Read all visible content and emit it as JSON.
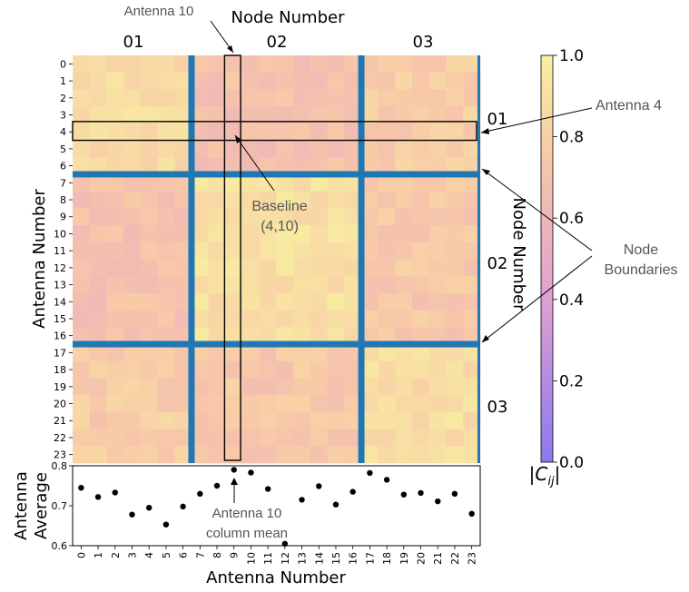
{
  "chart_data": [
    {
      "type": "heatmap",
      "xlabel": "Node Number",
      "ylabel": "Antenna Number",
      "right_label": "Node Number",
      "node_labels": [
        "01",
        "02",
        "03"
      ],
      "node_boundaries_after_antenna": [
        6,
        16
      ],
      "row_tick_labels": [
        "0",
        "1",
        "2",
        "3",
        "4",
        "5",
        "6",
        "7",
        "8",
        "9",
        "10",
        "11",
        "12",
        "13",
        "14",
        "15",
        "16",
        "17",
        "18",
        "19",
        "20",
        "21",
        "22",
        "23"
      ],
      "colorbar": {
        "label": "|C_ij|",
        "ticks": [
          "0.0",
          "0.2",
          "0.4",
          "0.6",
          "0.8",
          "1.0"
        ],
        "range": [
          0,
          1
        ],
        "colors": [
          "#8a78f0",
          "#e0a0d0",
          "#f8c8a8",
          "#f8f0a0"
        ]
      },
      "boundary_color": "#1f77b4",
      "node_value_blocks": [
        [
          0.87,
          0.7,
          0.78
        ],
        [
          0.7,
          0.9,
          0.75
        ],
        [
          0.78,
          0.75,
          0.88
        ]
      ],
      "highlight_row_antenna": 4,
      "highlight_column_antenna": 9,
      "annotations": {
        "antenna10": "Antenna 10",
        "antenna4": "Antenna 4",
        "baseline_line1": "Baseline",
        "baseline_line2": "(4,10)",
        "node_bound_line1": "Node",
        "node_bound_line2": "Boundaries",
        "col_mean_line1": "Antenna 10",
        "col_mean_line2": "column mean"
      }
    },
    {
      "type": "scatter",
      "xlabel": "Antenna Number",
      "ylabel": "Antenna Average",
      "x": [
        0,
        1,
        2,
        3,
        4,
        5,
        6,
        7,
        8,
        9,
        10,
        11,
        12,
        13,
        14,
        15,
        16,
        17,
        18,
        19,
        20,
        21,
        22,
        23
      ],
      "y": [
        0.745,
        0.722,
        0.733,
        0.678,
        0.695,
        0.653,
        0.698,
        0.73,
        0.75,
        0.79,
        0.783,
        0.742,
        0.605,
        0.715,
        0.749,
        0.703,
        0.735,
        0.782,
        0.765,
        0.728,
        0.732,
        0.711,
        0.73,
        0.68
      ],
      "ylim": [
        0.6,
        0.8
      ],
      "yticks": [
        "0.6",
        "0.7",
        "0.8"
      ],
      "point_color": "#000000"
    }
  ]
}
